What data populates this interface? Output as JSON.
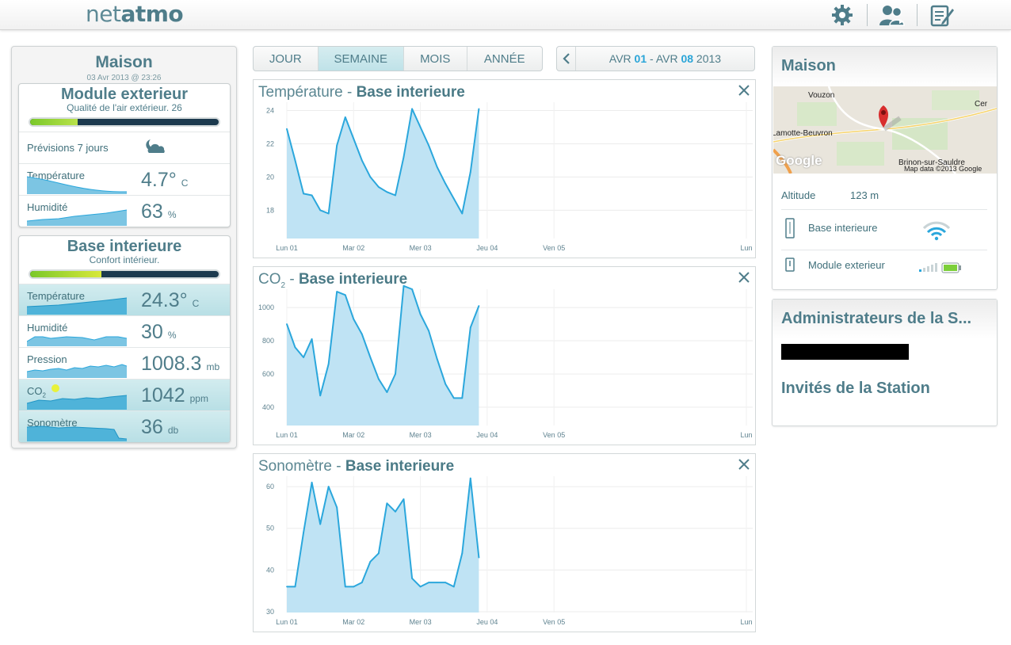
{
  "header": {
    "logo_part1": "net",
    "logo_part2": "atmo",
    "icons": [
      "gear-icon",
      "users-icon",
      "notes-icon"
    ]
  },
  "left": {
    "title": "Maison",
    "date": "03 Avr 2013 @ 23:26",
    "outdoor": {
      "title": "Module exterieur",
      "subtitle": "Qualité de l'air extérieur. 26",
      "quality_fraction": 0.25,
      "forecast_label": "Prévisions 7 jours",
      "temp_label": "Température",
      "temp_value": "4.7°",
      "temp_unit": "C",
      "hum_label": "Humidité",
      "hum_value": "63",
      "hum_unit": "%"
    },
    "indoor": {
      "title": "Base interieure",
      "subtitle": "Confort intérieur.",
      "quality_fraction": 0.38,
      "temp_label": "Température",
      "temp_value": "24.3°",
      "temp_unit": "C",
      "hum_label": "Humidité",
      "hum_value": "30",
      "hum_unit": "%",
      "press_label": "Pression",
      "press_value": "1008.3",
      "press_unit": "mb",
      "co2_label": "CO",
      "co2_sub": "2",
      "co2_value": "1042",
      "co2_unit": "ppm",
      "sound_label": "Sonomètre",
      "sound_value": "36",
      "sound_unit": "db"
    }
  },
  "tabs": [
    "JOUR",
    "SEMAINE",
    "MOIS",
    "ANNÉE"
  ],
  "active_tab": "SEMAINE",
  "date_range": {
    "m1": "AVR",
    "d1": "01",
    "sep": "-",
    "m2": "AVR",
    "d2": "08",
    "year": "2013"
  },
  "chart_data": [
    {
      "type": "area",
      "title_metric": "Température",
      "title_sep": " - ",
      "title_station": "Base interieure",
      "x_labels": [
        "Lun 01",
        "Mar 02",
        "Mer 03",
        "Jeu 04",
        "Ven 05",
        "Lun"
      ],
      "y_ticks": [
        24,
        22,
        20,
        18
      ],
      "ylim": [
        16.3,
        24.5
      ],
      "values": [
        22.9,
        21.0,
        19.0,
        18.9,
        18.0,
        17.8,
        21.9,
        23.6,
        22.3,
        21.0,
        20.0,
        19.4,
        19.1,
        18.9,
        21.2,
        24.1,
        23.0,
        21.9,
        20.6,
        19.6,
        18.7,
        17.8,
        20.3,
        24.1
      ],
      "color": "#2ba7dc"
    },
    {
      "type": "area",
      "title_metric": "CO",
      "title_sub": "2",
      "title_sep": " - ",
      "title_station": "Base interieure",
      "x_labels": [
        "Lun 01",
        "Mar 02",
        "Mer 03",
        "Jeu 04",
        "Ven 05",
        "Lun"
      ],
      "y_ticks": [
        1000,
        800,
        600,
        400
      ],
      "ylim": [
        290,
        1110
      ],
      "values": [
        900,
        760,
        700,
        810,
        470,
        660,
        1095,
        1075,
        930,
        840,
        700,
        570,
        490,
        600,
        1130,
        1110,
        960,
        860,
        690,
        540,
        455,
        455,
        880,
        1010
      ],
      "color": "#2ba7dc"
    },
    {
      "type": "area",
      "title_metric": "Sonomètre",
      "title_sep": " - ",
      "title_station": "Base interieure",
      "x_labels": [
        "Lun 01",
        "Mar 02",
        "Mer 03",
        "Jeu 04",
        "Ven 05",
        "Lun"
      ],
      "y_ticks": [
        60,
        50,
        40,
        30
      ],
      "ylim": [
        29.8,
        62.5
      ],
      "values": [
        36,
        36,
        49,
        61,
        51,
        60,
        55,
        36,
        36,
        37,
        42,
        44,
        56,
        54,
        57,
        38,
        36,
        37,
        37,
        37,
        36,
        44,
        62,
        43
      ],
      "color": "#2ba7dc"
    }
  ],
  "right": {
    "title": "Maison",
    "map_labels": [
      "Vouzon",
      "Cer",
      "Lamotte-Beuvron",
      "Brinon-sur-Sauldre",
      "Google",
      "Map data ©2013 Google"
    ],
    "altitude_label": "Altitude",
    "altitude_value": "123 m",
    "device1": "Base interieure",
    "device2": "Module exterieur",
    "admin_title": "Administrateurs de la S...",
    "guests_title": "Invités de la Station"
  }
}
